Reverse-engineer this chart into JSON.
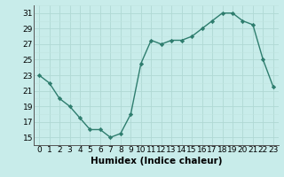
{
  "x": [
    0,
    1,
    2,
    3,
    4,
    5,
    6,
    7,
    8,
    9,
    10,
    11,
    12,
    13,
    14,
    15,
    16,
    17,
    18,
    19,
    20,
    21,
    22,
    23
  ],
  "y": [
    23,
    22,
    20,
    19,
    17.5,
    16,
    16,
    15,
    15.5,
    18,
    24.5,
    27.5,
    27,
    27.5,
    27.5,
    28,
    29,
    30,
    31,
    31,
    30,
    29.5,
    25,
    21.5
  ],
  "line_color": "#2e7d6e",
  "marker_color": "#2e7d6e",
  "bg_color": "#c8ecea",
  "grid_major_color": "#b0d8d4",
  "grid_minor_color": "#c0e4e0",
  "xlabel": "Humidex (Indice chaleur)",
  "ylim": [
    14,
    32
  ],
  "xlim": [
    -0.5,
    23.5
  ],
  "yticks": [
    15,
    17,
    19,
    21,
    23,
    25,
    27,
    29,
    31
  ],
  "xticks": [
    0,
    1,
    2,
    3,
    4,
    5,
    6,
    7,
    8,
    9,
    10,
    11,
    12,
    13,
    14,
    15,
    16,
    17,
    18,
    19,
    20,
    21,
    22,
    23
  ],
  "xlabel_fontsize": 7.5,
  "tick_fontsize": 6.5,
  "linewidth": 1.0,
  "markersize": 2.2
}
